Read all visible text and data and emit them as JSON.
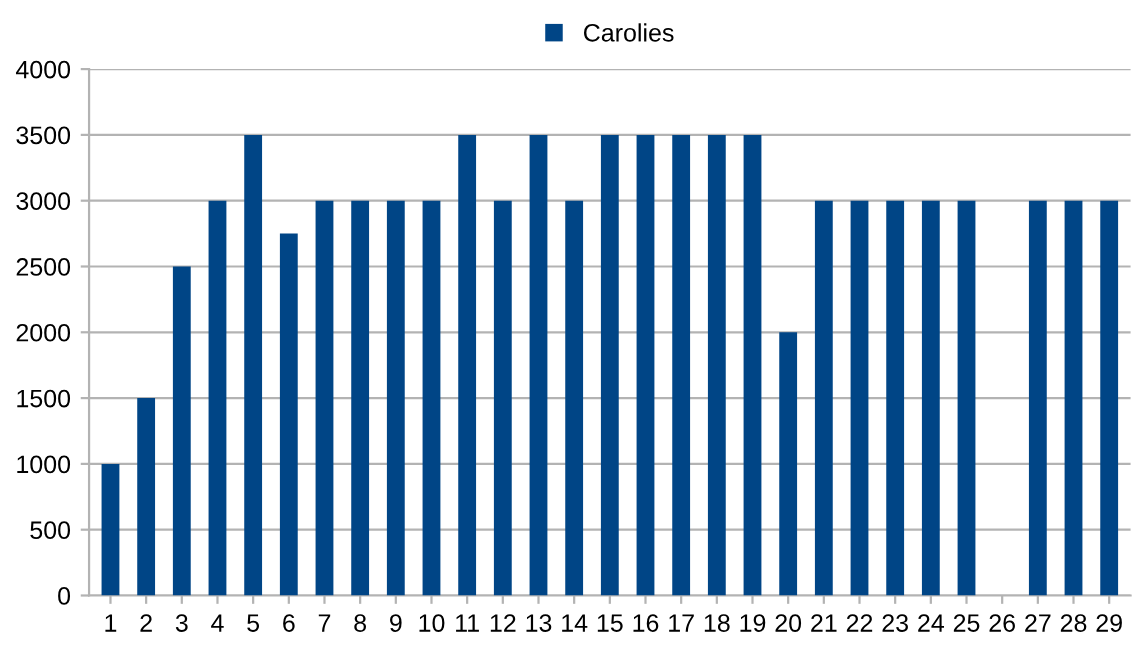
{
  "chart_data": {
    "type": "bar",
    "categories": [
      "1",
      "2",
      "3",
      "4",
      "5",
      "6",
      "7",
      "8",
      "9",
      "10",
      "11",
      "12",
      "13",
      "14",
      "15",
      "16",
      "17",
      "18",
      "19",
      "20",
      "21",
      "22",
      "23",
      "24",
      "25",
      "26",
      "27",
      "28",
      "29"
    ],
    "series": [
      {
        "name": "Carolies",
        "color": "#004586",
        "values": [
          1000,
          1500,
          2500,
          3000,
          3500,
          2750,
          3000,
          3000,
          3000,
          3000,
          3500,
          3000,
          3500,
          3000,
          3500,
          3500,
          3500,
          3500,
          3500,
          2000,
          3000,
          3000,
          3000,
          3000,
          3000,
          0,
          3000,
          3000,
          3000
        ]
      }
    ],
    "ylim": [
      0,
      4000
    ],
    "yticks": [
      0,
      500,
      1000,
      1500,
      2000,
      2500,
      3000,
      3500,
      4000
    ],
    "grid": "y",
    "legend": "top"
  }
}
